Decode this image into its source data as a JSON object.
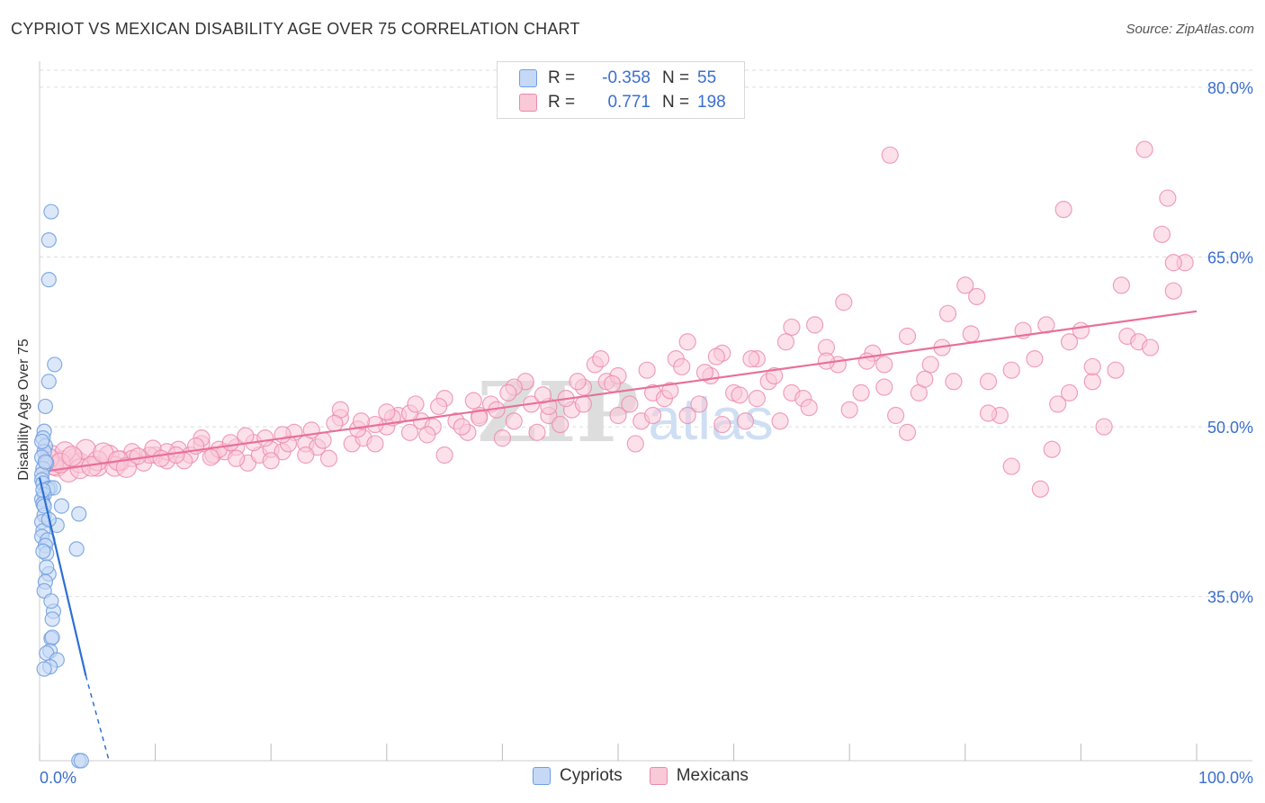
{
  "title": "CYPRIOT VS MEXICAN DISABILITY AGE OVER 75 CORRELATION CHART",
  "source": "Source: ZipAtlas.com",
  "watermark": {
    "zip": "ZIP",
    "atlas": "atlas"
  },
  "legend": {
    "rows": [
      {
        "r_label": "R =",
        "r_value": "-0.358",
        "n_label": "N =",
        "n_value": "55"
      },
      {
        "r_label": "R =",
        "r_value": "0.771",
        "n_label": "N =",
        "n_value": "198"
      }
    ],
    "series": [
      "Cypriots",
      "Mexicans"
    ]
  },
  "colors": {
    "cypriots_fill": "#c5d8f5",
    "cypriots_stroke": "#6f9fe0",
    "cypriots_line": "#2d6fd6",
    "mexicans_fill": "#f9c9d8",
    "mexicans_stroke": "#ec8aab",
    "mexicans_line": "#e8709a",
    "tick_label": "#3a6fd0",
    "grid": "#dddddd"
  },
  "chart_data": {
    "type": "scatter",
    "title": "CYPRIOT VS MEXICAN DISABILITY AGE OVER 75 CORRELATION CHART",
    "xlabel": "",
    "ylabel": "Disability Age Over 75",
    "xlim": [
      0,
      100
    ],
    "ylim": [
      20.5,
      81.5
    ],
    "x_tick_labels": [
      "0.0%",
      "100.0%"
    ],
    "y_ticks": [
      35,
      50,
      65,
      80
    ],
    "y_tick_labels": [
      "35.0%",
      "50.0%",
      "65.0%",
      "80.0%"
    ],
    "grid": true,
    "series": [
      {
        "name": "Cypriots",
        "r": -0.358,
        "n": 55,
        "trend": {
          "x": [
            0,
            4.0
          ],
          "y": [
            45.5,
            28.0
          ],
          "dashed_to": [
            6.0,
            20.5
          ]
        },
        "points": [
          [
            1.0,
            69.0
          ],
          [
            0.8,
            66.5
          ],
          [
            0.8,
            63.0
          ],
          [
            1.3,
            55.5
          ],
          [
            0.8,
            54.0
          ],
          [
            0.5,
            51.8
          ],
          [
            0.4,
            49.6
          ],
          [
            0.3,
            49.0
          ],
          [
            0.5,
            48.3
          ],
          [
            0.4,
            47.8
          ],
          [
            0.2,
            47.3
          ],
          [
            0.6,
            46.8
          ],
          [
            0.3,
            46.3
          ],
          [
            0.2,
            45.8
          ],
          [
            0.2,
            45.3
          ],
          [
            0.3,
            45.0
          ],
          [
            0.9,
            44.6
          ],
          [
            0.7,
            44.5
          ],
          [
            1.2,
            44.6
          ],
          [
            0.4,
            44.0
          ],
          [
            0.2,
            43.6
          ],
          [
            0.3,
            43.2
          ],
          [
            1.9,
            43.0
          ],
          [
            3.4,
            42.3
          ],
          [
            0.4,
            42.2
          ],
          [
            0.2,
            41.6
          ],
          [
            1.5,
            41.3
          ],
          [
            0.3,
            40.8
          ],
          [
            0.2,
            40.3
          ],
          [
            0.7,
            40.0
          ],
          [
            0.5,
            39.5
          ],
          [
            3.2,
            39.2
          ],
          [
            0.6,
            38.8
          ],
          [
            0.8,
            37.0
          ],
          [
            0.5,
            36.3
          ],
          [
            0.4,
            35.5
          ],
          [
            1.2,
            33.7
          ],
          [
            1.1,
            33.0
          ],
          [
            1.0,
            31.3
          ],
          [
            1.1,
            31.4
          ],
          [
            0.9,
            30.2
          ],
          [
            0.6,
            30.0
          ],
          [
            1.5,
            29.4
          ],
          [
            0.9,
            28.8
          ],
          [
            0.4,
            28.6
          ],
          [
            3.4,
            20.5
          ],
          [
            3.6,
            20.5
          ],
          [
            0.3,
            44.4
          ],
          [
            0.5,
            46.9
          ],
          [
            0.2,
            48.7
          ],
          [
            0.4,
            43.0
          ],
          [
            0.8,
            41.8
          ],
          [
            0.3,
            39.0
          ],
          [
            0.6,
            37.6
          ],
          [
            1.0,
            34.6
          ]
        ]
      },
      {
        "name": "Mexicans",
        "r": 0.771,
        "n": 198,
        "trend": {
          "x": [
            0,
            100
          ],
          "y": [
            46.0,
            60.2
          ]
        },
        "points": [
          [
            1.0,
            47.5
          ],
          [
            1.5,
            46.5
          ],
          [
            2.0,
            47.0
          ],
          [
            2.5,
            46.0
          ],
          [
            3.0,
            47.2
          ],
          [
            3.5,
            46.8
          ],
          [
            4.0,
            48.0
          ],
          [
            5.0,
            46.5
          ],
          [
            6.0,
            47.5
          ],
          [
            7.0,
            47.0
          ],
          [
            8.0,
            47.8
          ],
          [
            9.0,
            46.8
          ],
          [
            10.0,
            47.5
          ],
          [
            11.0,
            47.0
          ],
          [
            12.0,
            48.0
          ],
          [
            13.0,
            47.5
          ],
          [
            14.0,
            48.5
          ],
          [
            15.0,
            47.5
          ],
          [
            16.0,
            47.8
          ],
          [
            17.0,
            48.2
          ],
          [
            18.0,
            46.8
          ],
          [
            19.0,
            47.5
          ],
          [
            20.0,
            48.0
          ],
          [
            21.0,
            47.8
          ],
          [
            22.0,
            49.5
          ],
          [
            23.0,
            48.5
          ],
          [
            24.0,
            48.2
          ],
          [
            25.0,
            47.2
          ],
          [
            26.0,
            50.8
          ],
          [
            27.0,
            48.5
          ],
          [
            28.0,
            49.0
          ],
          [
            29.0,
            48.5
          ],
          [
            30.0,
            50.0
          ],
          [
            31.0,
            51.0
          ],
          [
            32.0,
            49.5
          ],
          [
            33.0,
            50.5
          ],
          [
            34.0,
            50.0
          ],
          [
            35.0,
            47.5
          ],
          [
            36.0,
            50.5
          ],
          [
            37.0,
            49.5
          ],
          [
            38.0,
            51.0
          ],
          [
            39.0,
            52.0
          ],
          [
            40.0,
            49.0
          ],
          [
            41.0,
            50.5
          ],
          [
            42.0,
            54.0
          ],
          [
            43.0,
            49.5
          ],
          [
            44.0,
            51.0
          ],
          [
            45.0,
            50.2
          ],
          [
            46.0,
            51.5
          ],
          [
            47.0,
            52.0
          ],
          [
            48.0,
            55.5
          ],
          [
            49.0,
            54.0
          ],
          [
            50.0,
            51.0
          ],
          [
            51.0,
            52.0
          ],
          [
            52.0,
            50.5
          ],
          [
            53.0,
            53.0
          ],
          [
            54.0,
            52.5
          ],
          [
            55.0,
            56.0
          ],
          [
            56.0,
            51.0
          ],
          [
            57.0,
            52.0
          ],
          [
            58.0,
            54.5
          ],
          [
            59.0,
            56.5
          ],
          [
            60.0,
            53.0
          ],
          [
            61.0,
            50.5
          ],
          [
            62.0,
            52.5
          ],
          [
            63.0,
            54.0
          ],
          [
            64.0,
            50.5
          ],
          [
            65.0,
            53.0
          ],
          [
            66.0,
            52.5
          ],
          [
            67.0,
            59.0
          ],
          [
            68.0,
            57.0
          ],
          [
            69.0,
            55.5
          ],
          [
            70.0,
            51.5
          ],
          [
            71.0,
            53.0
          ],
          [
            72.0,
            56.5
          ],
          [
            73.0,
            55.5
          ],
          [
            74.0,
            51.0
          ],
          [
            75.0,
            58.0
          ],
          [
            76.0,
            53.0
          ],
          [
            77.0,
            55.5
          ],
          [
            78.0,
            57.0
          ],
          [
            79.0,
            54.0
          ],
          [
            80.0,
            62.5
          ],
          [
            81.0,
            61.5
          ],
          [
            82.0,
            54.0
          ],
          [
            83.0,
            51.0
          ],
          [
            84.0,
            55.0
          ],
          [
            85.0,
            58.5
          ],
          [
            86.0,
            56.0
          ],
          [
            87.0,
            59.0
          ],
          [
            88.0,
            52.0
          ],
          [
            89.0,
            57.5
          ],
          [
            90.0,
            58.5
          ],
          [
            91.0,
            54.0
          ],
          [
            92.0,
            50.0
          ],
          [
            93.0,
            55.0
          ],
          [
            94.0,
            58.0
          ],
          [
            95.0,
            57.5
          ],
          [
            96.0,
            57.0
          ],
          [
            97.0,
            67.0
          ],
          [
            98.0,
            62.0
          ],
          [
            99.0,
            64.5
          ],
          [
            73.5,
            74.0
          ],
          [
            95.5,
            74.5
          ],
          [
            97.5,
            70.2
          ],
          [
            88.5,
            69.2
          ],
          [
            98.0,
            64.5
          ],
          [
            93.5,
            62.5
          ],
          [
            91.0,
            55.3
          ],
          [
            89.0,
            53.0
          ],
          [
            87.5,
            48.0
          ],
          [
            86.5,
            44.5
          ],
          [
            84.0,
            46.5
          ],
          [
            82.0,
            51.2
          ],
          [
            80.5,
            58.2
          ],
          [
            78.5,
            60.0
          ],
          [
            76.5,
            54.2
          ],
          [
            75.0,
            49.5
          ],
          [
            73.0,
            53.5
          ],
          [
            71.5,
            55.8
          ],
          [
            69.5,
            61.0
          ],
          [
            68.0,
            55.8
          ],
          [
            66.5,
            51.7
          ],
          [
            65.0,
            58.8
          ],
          [
            63.5,
            54.5
          ],
          [
            62.0,
            56.0
          ],
          [
            60.5,
            52.8
          ],
          [
            59.0,
            50.2
          ],
          [
            57.5,
            54.8
          ],
          [
            56.0,
            57.5
          ],
          [
            54.5,
            53.2
          ],
          [
            53.0,
            51.0
          ],
          [
            51.5,
            48.5
          ],
          [
            50.0,
            54.5
          ],
          [
            48.5,
            56.0
          ],
          [
            47.0,
            53.5
          ],
          [
            45.5,
            52.5
          ],
          [
            44.0,
            51.8
          ],
          [
            42.5,
            52.0
          ],
          [
            41.0,
            53.5
          ],
          [
            39.5,
            51.5
          ],
          [
            38.0,
            50.8
          ],
          [
            36.5,
            50.0
          ],
          [
            35.0,
            52.5
          ],
          [
            33.5,
            49.3
          ],
          [
            32.0,
            51.2
          ],
          [
            30.5,
            50.8
          ],
          [
            29.0,
            50.2
          ],
          [
            27.5,
            49.8
          ],
          [
            26.0,
            51.5
          ],
          [
            24.5,
            48.8
          ],
          [
            23.0,
            47.5
          ],
          [
            21.5,
            48.5
          ],
          [
            20.0,
            47.0
          ],
          [
            18.5,
            48.6
          ],
          [
            17.0,
            47.2
          ],
          [
            15.5,
            48.0
          ],
          [
            14.0,
            49.0
          ],
          [
            12.5,
            47.0
          ],
          [
            11.0,
            47.8
          ],
          [
            9.5,
            47.5
          ],
          [
            8.0,
            47.2
          ],
          [
            6.5,
            46.5
          ],
          [
            5.0,
            47.0
          ],
          [
            3.5,
            46.3
          ],
          [
            2.2,
            47.8
          ],
          [
            1.2,
            46.6
          ],
          [
            0.8,
            47.2
          ],
          [
            1.8,
            46.8
          ],
          [
            2.8,
            47.4
          ],
          [
            4.5,
            46.5
          ],
          [
            5.5,
            47.7
          ],
          [
            6.8,
            47.0
          ],
          [
            7.5,
            46.4
          ],
          [
            8.5,
            47.4
          ],
          [
            9.8,
            48.1
          ],
          [
            10.5,
            47.2
          ],
          [
            11.8,
            47.5
          ],
          [
            13.5,
            48.3
          ],
          [
            14.8,
            47.3
          ],
          [
            16.5,
            48.6
          ],
          [
            17.8,
            49.2
          ],
          [
            19.5,
            49.0
          ],
          [
            21.0,
            49.3
          ],
          [
            23.5,
            49.7
          ],
          [
            25.5,
            50.3
          ],
          [
            27.8,
            50.5
          ],
          [
            30.0,
            51.3
          ],
          [
            32.5,
            52.0
          ],
          [
            34.5,
            51.8
          ],
          [
            37.5,
            52.3
          ],
          [
            40.5,
            53.0
          ],
          [
            43.5,
            52.8
          ],
          [
            46.5,
            54.0
          ],
          [
            49.5,
            53.8
          ],
          [
            52.5,
            55.0
          ],
          [
            55.5,
            55.3
          ],
          [
            58.5,
            56.2
          ],
          [
            61.5,
            56.0
          ],
          [
            64.5,
            57.5
          ]
        ]
      }
    ]
  }
}
